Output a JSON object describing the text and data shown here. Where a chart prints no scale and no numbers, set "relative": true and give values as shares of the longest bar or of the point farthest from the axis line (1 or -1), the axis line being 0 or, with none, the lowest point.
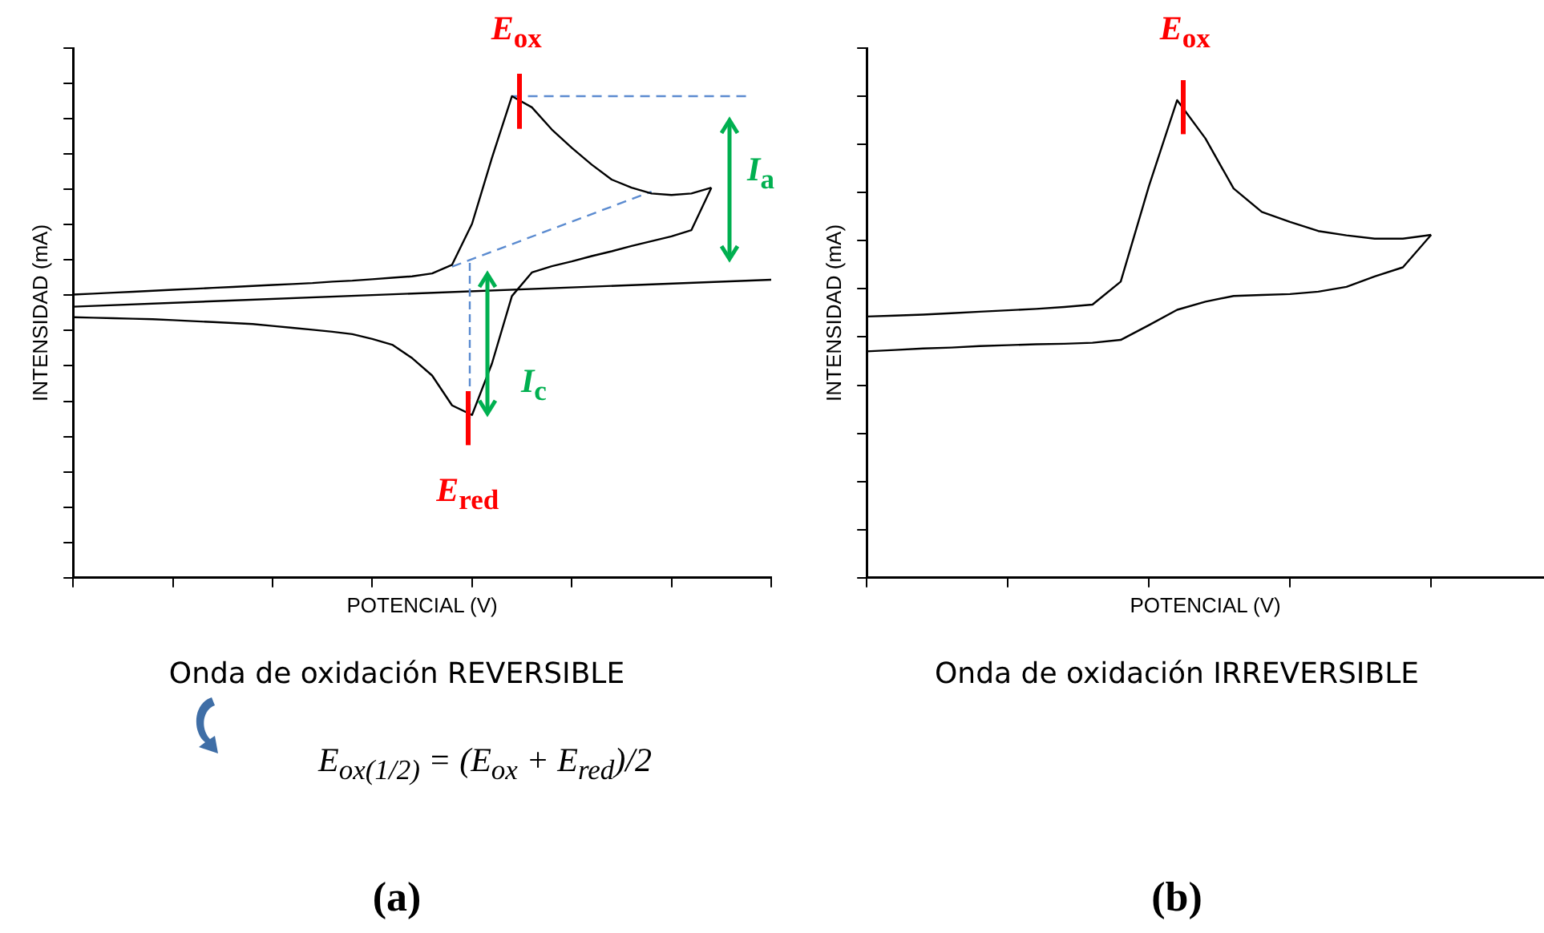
{
  "chart_data": [
    {
      "type": "line",
      "relative": true,
      "xlabel": "POTENCIAL (V)",
      "ylabel": "INTENSIDAD (mA)",
      "marker": "none",
      "tick_labels": false,
      "categories": [
        null,
        null,
        null,
        null,
        null,
        null,
        null,
        null,
        null,
        null,
        null,
        null,
        null,
        null,
        null,
        null,
        null,
        null,
        null,
        null,
        null,
        null,
        null,
        null,
        null,
        null,
        null,
        null,
        null,
        null,
        null,
        null,
        null,
        null,
        null,
        null
      ],
      "series": [
        {
          "color": "#000000",
          "values": [
            0.588,
            0.59,
            0.592,
            0.594,
            0.596,
            0.598,
            0.6,
            0.602,
            0.604,
            0.606,
            0.608,
            0.61,
            0.612,
            0.615,
            0.617,
            0.62,
            0.623,
            0.626,
            0.632,
            0.65,
            0.735,
            0.872,
            1,
            0.977,
            0.931,
            0.893,
            0.858,
            0.827,
            0.81,
            0.798,
            0.795,
            0.798,
            0.81,
            null,
            null,
            null
          ]
        },
        {
          "color": "#000000",
          "values": [
            0.541,
            0.54,
            0.539,
            0.538,
            0.537,
            0.535,
            0.533,
            0.531,
            0.529,
            0.527,
            0.523,
            0.519,
            0.515,
            0.511,
            0.506,
            0.496,
            0.484,
            0.456,
            0.42,
            0.358,
            0.338,
            0.445,
            0.585,
            0.634,
            0.647,
            0.657,
            0.668,
            0.678,
            0.689,
            0.699,
            0.709,
            0.722,
            0.81,
            null,
            null,
            null
          ]
        },
        {
          "color": "#000000",
          "values": [
            0.563,
            null,
            null,
            null,
            null,
            null,
            null,
            null,
            null,
            null,
            null,
            null,
            null,
            null,
            null,
            null,
            null,
            null,
            null,
            null,
            null,
            null,
            null,
            null,
            null,
            null,
            null,
            null,
            null,
            null,
            null,
            null,
            null,
            null,
            null,
            0.619
          ]
        },
        {
          "color": "#5b8bd0",
          "line_style": "dashed",
          "values": [
            null,
            null,
            null,
            null,
            null,
            null,
            null,
            null,
            null,
            null,
            null,
            null,
            null,
            null,
            null,
            null,
            null,
            null,
            null,
            null,
            null,
            null,
            1,
            null,
            null,
            null,
            null,
            null,
            null,
            null,
            null,
            null,
            null,
            null,
            1,
            null
          ]
        },
        {
          "color": "#5b8bd0",
          "line_style": "dashed",
          "values": [
            null,
            null,
            null,
            null,
            null,
            null,
            null,
            null,
            null,
            null,
            null,
            null,
            null,
            null,
            null,
            null,
            null,
            null,
            null,
            0.646,
            null,
            null,
            null,
            null,
            null,
            null,
            null,
            null,
            null,
            0.802,
            null,
            null,
            null,
            null,
            null,
            null
          ]
        }
      ],
      "annotations": [
        "E$_{ox}$",
        "E$_{red}$",
        "I$_{a}$",
        "I$_{c}$",
        "Onda de oxidación REVERSIBLE",
        "E$_{ox(1/2)}$ = (E$_{ox}$ + E$_{red}$)/2",
        "(a)"
      ]
    },
    {
      "type": "line",
      "relative": true,
      "xlabel": "POTENCIAL (V)",
      "ylabel": "INTENSIDAD (mA)",
      "marker": "none",
      "tick_labels": false,
      "categories": [
        null,
        null,
        null,
        null,
        null,
        null,
        null,
        null,
        null,
        null,
        null,
        null,
        null,
        null,
        null,
        null,
        null,
        null,
        null,
        null,
        null,
        null,
        null,
        null,
        null
      ],
      "series": [
        {
          "color": "#000000",
          "values": [
            0.547,
            0.549,
            0.551,
            0.554,
            0.557,
            0.56,
            0.563,
            0.567,
            0.572,
            0.62,
            0.82,
            1,
            0.92,
            0.815,
            0.766,
            0.745,
            0.726,
            0.717,
            0.71,
            0.71,
            0.718,
            null,
            null,
            null,
            null
          ]
        },
        {
          "color": "#000000",
          "values": [
            0.474,
            0.477,
            0.48,
            0.482,
            0.485,
            0.487,
            0.489,
            0.49,
            0.492,
            0.498,
            0.529,
            0.561,
            0.578,
            0.59,
            0.592,
            0.594,
            0.599,
            0.609,
            0.631,
            0.65,
            0.718,
            null,
            null,
            null,
            null
          ]
        }
      ],
      "annotations": [
        "E$_{ox}$",
        "Onda de oxidación IRREVERSIBLE",
        "(b)"
      ]
    }
  ]
}
